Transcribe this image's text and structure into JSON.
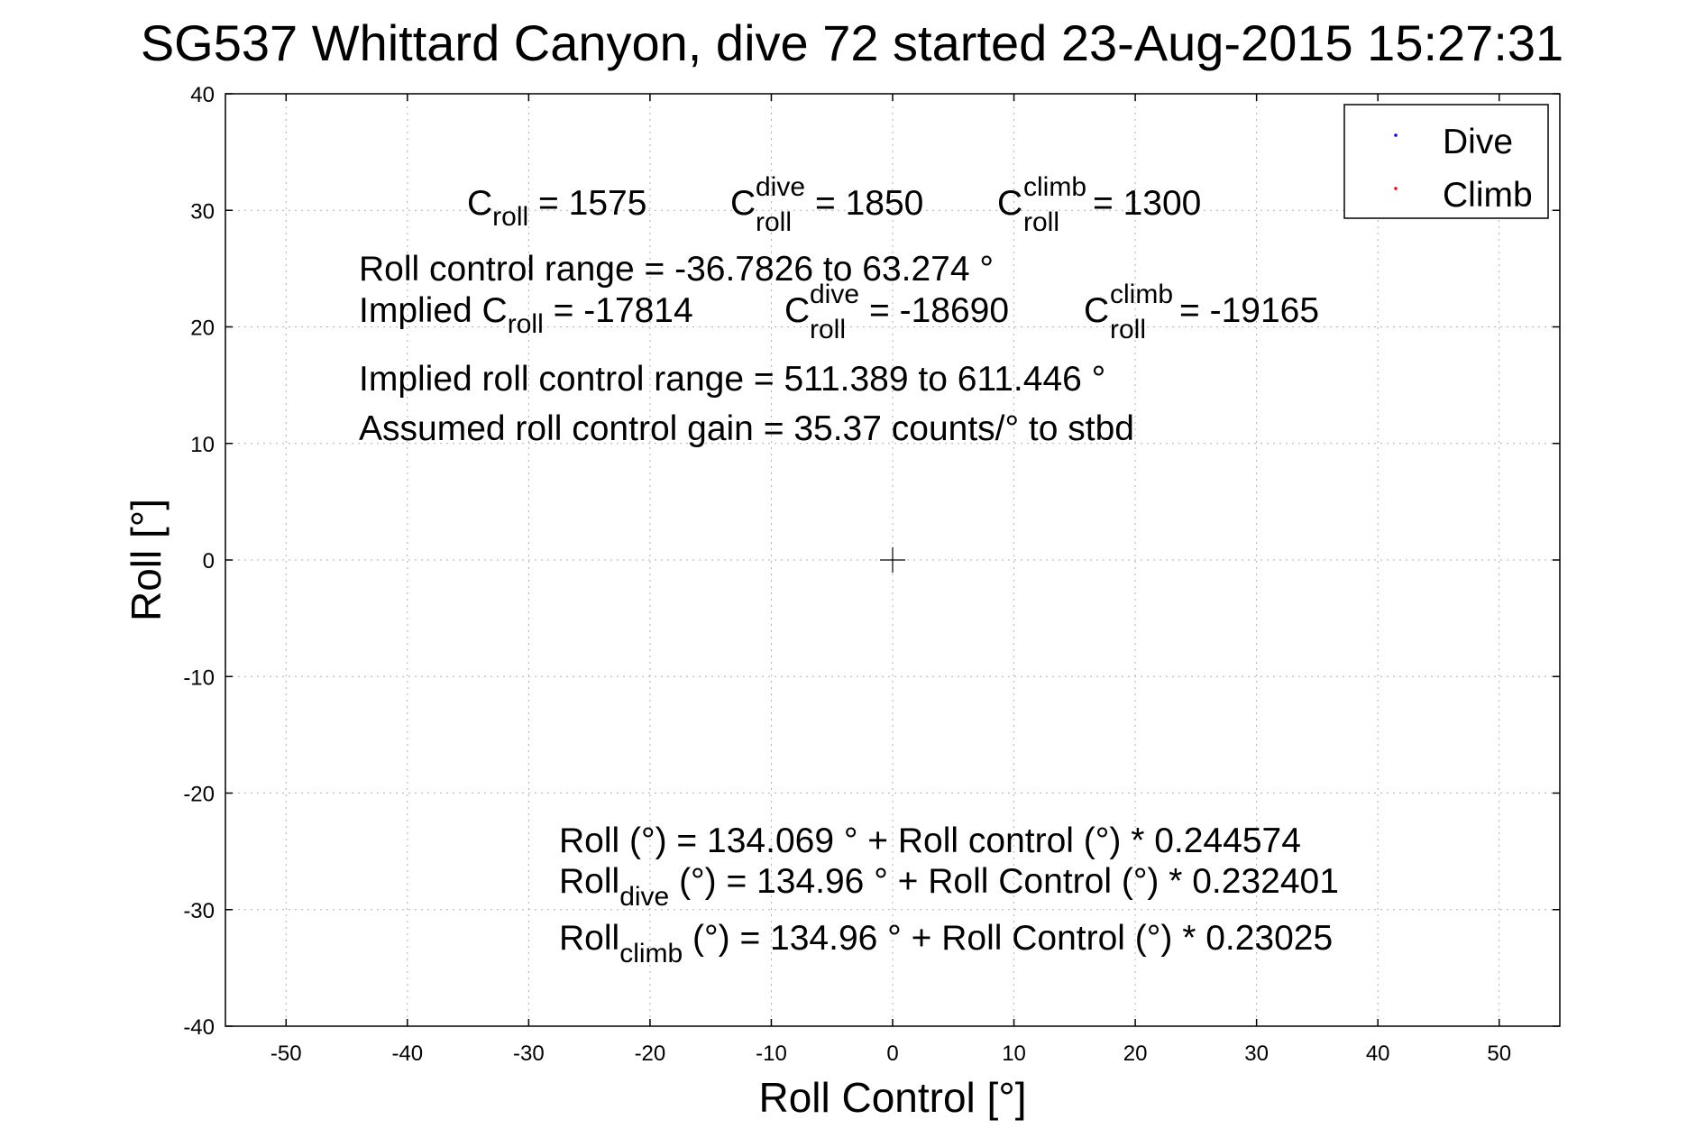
{
  "chart_data": {
    "type": "scatter",
    "title": "SG537 Whittard Canyon, dive 72 started 23-Aug-2015 15:27:31",
    "xlabel": "Roll Control [°]",
    "ylabel": "Roll [°]",
    "xlim": [
      -55,
      55
    ],
    "ylim": [
      -40,
      40
    ],
    "xticks": [
      -50,
      -40,
      -30,
      -20,
      -10,
      0,
      10,
      20,
      30,
      40,
      50
    ],
    "yticks": [
      -40,
      -30,
      -20,
      -10,
      0,
      10,
      20,
      30,
      40
    ],
    "grid": true,
    "legend_position": "top-right",
    "series": [
      {
        "name": "Dive",
        "color": "#0000ff",
        "x": [],
        "y": []
      },
      {
        "name": "Climb",
        "color": "#ff0000",
        "x": [],
        "y": []
      }
    ],
    "origin_marker": {
      "x": 0,
      "y": 0
    },
    "annotations": {
      "c_roll": {
        "base": "C",
        "sub": "roll",
        "rest": " = 1575"
      },
      "c_roll_dive": {
        "base": "C",
        "sup": "dive",
        "sub": "roll",
        "rest": " = 1850"
      },
      "c_roll_climb": {
        "base": "C",
        "sup": "climb",
        "sub": "roll",
        "rest": " = 1300"
      },
      "roll_control_range": "Roll control range = -36.7826 to 63.274 °",
      "implied_c_roll": {
        "base": "Implied C",
        "sub": "roll",
        "rest": " = -17814"
      },
      "implied_c_roll_dive": {
        "base": "C",
        "sup": "dive",
        "sub": "roll",
        "rest": " = -18690"
      },
      "implied_c_roll_climb": {
        "base": "C",
        "sup": "climb",
        "sub": "roll",
        "rest": " = -19165"
      },
      "implied_range": "Implied roll control range = 511.389 to 611.446 °",
      "assumed_gain": "Assumed roll control gain = 35.37 counts/° to stbd",
      "fit_all": "Roll (°) = 134.069 ° + Roll control (°) * 0.244574",
      "fit_dive": {
        "base": "Roll",
        "sub": "dive",
        "rest": " (°) = 134.96 ° + Roll Control (°) * 0.232401"
      },
      "fit_climb": {
        "base": "Roll",
        "sub": "climb",
        "rest": " (°) = 134.96 ° + Roll Control (°) * 0.23025"
      }
    }
  }
}
